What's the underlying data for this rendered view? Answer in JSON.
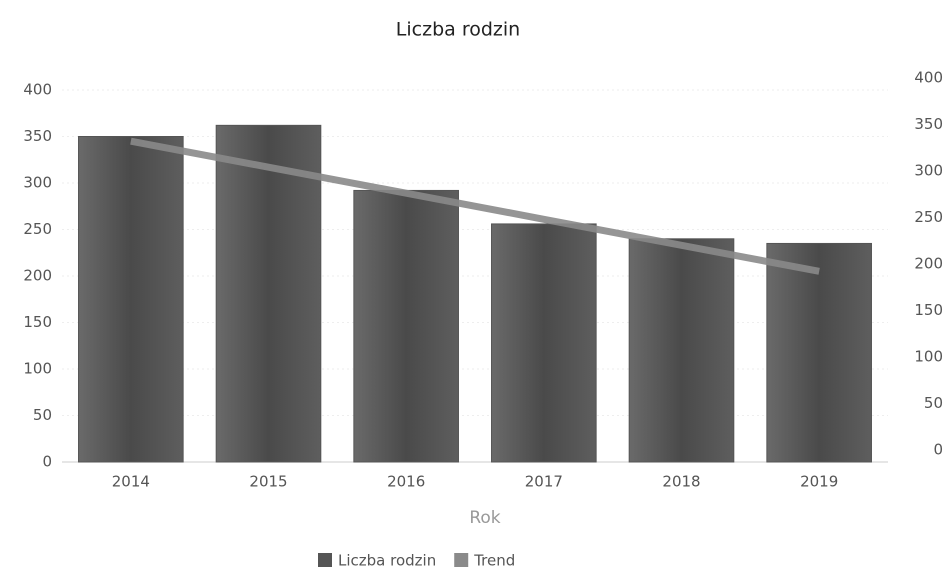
{
  "chart_data": {
    "type": "bar",
    "title": "Liczba rodzin",
    "x_label": "Rok",
    "categories": [
      "2014",
      "2015",
      "2016",
      "2017",
      "2018",
      "2019"
    ],
    "series": [
      {
        "name": "Liczba rodzin",
        "color": "#555555",
        "values": [
          350,
          362,
          292,
          256,
          240,
          235
        ]
      },
      {
        "name": "Trend",
        "type": "line",
        "axis": "y2",
        "color": "#8a8a8a",
        "values": [
          345,
          317,
          289,
          261,
          233,
          205
        ]
      }
    ],
    "ylim": [
      0,
      400
    ],
    "yticks": [
      0,
      50,
      100,
      150,
      200,
      250,
      300,
      350,
      400
    ],
    "y2lim": [
      0,
      400
    ],
    "y2ticks": [
      0,
      50,
      100,
      150,
      200,
      250,
      300,
      350,
      400
    ],
    "grid": true,
    "legend": "bottom"
  }
}
